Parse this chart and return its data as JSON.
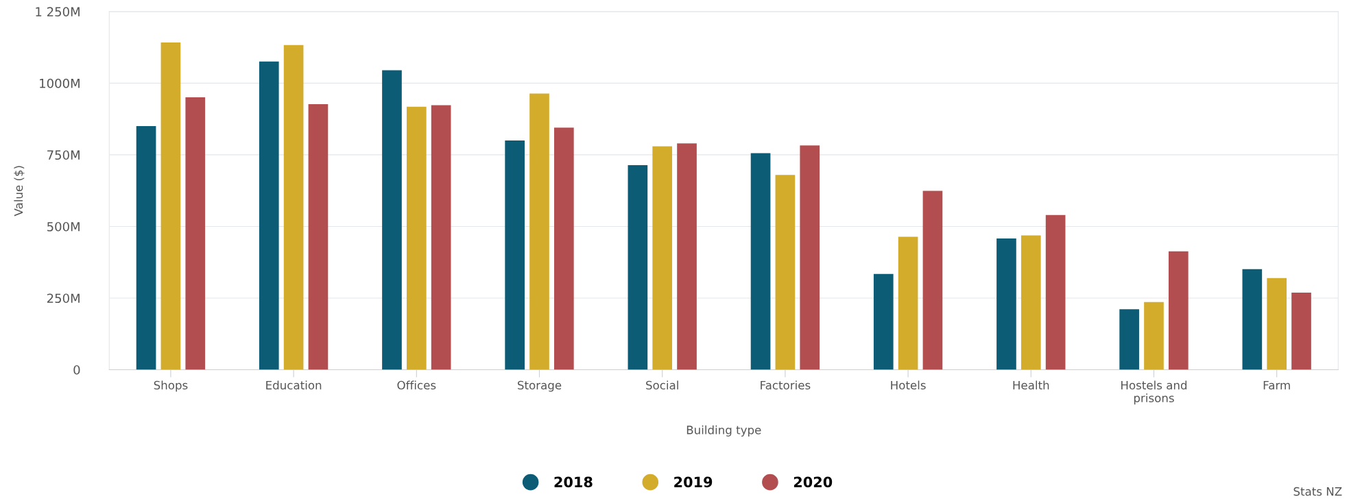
{
  "chart_data": {
    "type": "bar",
    "xlabel": "Building type",
    "ylabel": "Value ($)",
    "categories": [
      "Shops",
      "Education",
      "Offices",
      "Storage",
      "Social",
      "Factories",
      "Hotels",
      "Health",
      "Hostels and\nprisons",
      "Farm"
    ],
    "series": [
      {
        "name": "2018",
        "color": "#0d5c75",
        "values": [
          850,
          1076,
          1045,
          800,
          714,
          756,
          334,
          458,
          211,
          351
        ]
      },
      {
        "name": "2019",
        "color": "#d4ac2c",
        "values": [
          1142,
          1133,
          918,
          964,
          780,
          680,
          464,
          469,
          236,
          320
        ]
      },
      {
        "name": "2020",
        "color": "#b24e50",
        "values": [
          951,
          927,
          923,
          845,
          790,
          783,
          624,
          540,
          413,
          269
        ]
      }
    ],
    "ylim": [
      0,
      1250
    ],
    "yticks": [
      0,
      {
        "value": 250,
        "label": "250M"
      },
      {
        "value": 500,
        "label": "500M"
      },
      {
        "value": 750,
        "label": "750M"
      },
      {
        "value": 1000,
        "label": "1000M"
      },
      {
        "value": 1250,
        "label": "1 250M"
      }
    ],
    "grid": "y",
    "legend": "bottom",
    "annotations": [
      "Stats NZ"
    ]
  }
}
